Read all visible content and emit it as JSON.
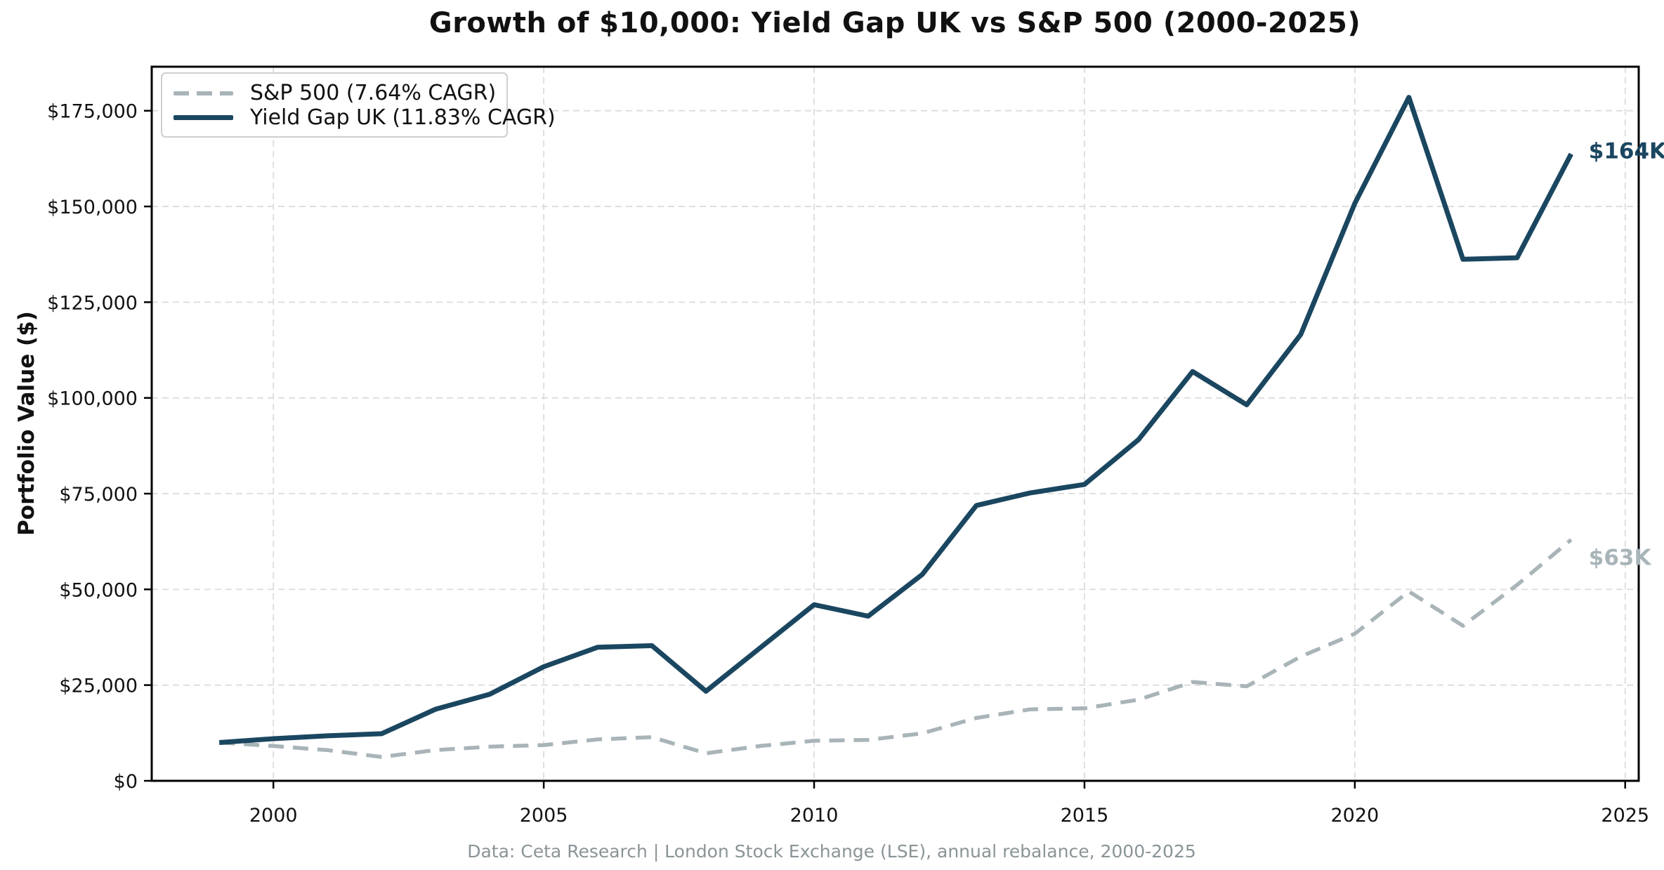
{
  "title": "Growth of $10,000: Yield Gap UK vs S&P 500 (2000-2025)",
  "y_axis_label": "Portfolio Value ($)",
  "footer": "Data: Ceta Research | London Stock Exchange (LSE), annual rebalance, 2000-2025",
  "legend": {
    "position": "upper left",
    "items": [
      {
        "label": "S&P 500 (7.64% CAGR)",
        "color": "#a8b4b8",
        "style": "dashed"
      },
      {
        "label": "Yield Gap UK (11.83% CAGR)",
        "color": "#1a4660",
        "style": "solid"
      }
    ]
  },
  "colors": {
    "sp500_line": "#a8b4b8",
    "yield_gap_line": "#1a4660",
    "gridline": "#dcdcdc",
    "axis": "#000000",
    "tick_text": "#111111",
    "footer_text": "#8a9497"
  },
  "chart_data": {
    "type": "line",
    "title": "Growth of $10,000: Yield Gap UK vs S&P 500 (2000-2025)",
    "xlabel": "",
    "ylabel": "Portfolio Value ($)",
    "grid": true,
    "legend_position": "upper left",
    "xlim": [
      1997.75,
      2025.25
    ],
    "ylim": [
      0,
      186500
    ],
    "xticks": [
      2000,
      2005,
      2010,
      2015,
      2020,
      2025
    ],
    "yticks": [
      0,
      25000,
      50000,
      75000,
      100000,
      125000,
      150000,
      175000
    ],
    "ytick_labels": [
      "$0",
      "$25,000",
      "$50,000",
      "$75,000",
      "$100,000",
      "$125,000",
      "$150,000",
      "$175,000"
    ],
    "x": [
      1999,
      2000,
      2001,
      2002,
      2003,
      2004,
      2005,
      2006,
      2007,
      2008,
      2009,
      2010,
      2011,
      2012,
      2013,
      2014,
      2015,
      2016,
      2017,
      2018,
      2019,
      2020,
      2021,
      2022,
      2023,
      2024
    ],
    "series": [
      {
        "name": "S&P 500 (7.64% CAGR)",
        "color": "#a8b4b8",
        "dash": true,
        "line_width": 5.5,
        "end_label": "$63K",
        "end_label_offset": [
          25,
          36
        ],
        "values": [
          10000,
          9090,
          8010,
          6240,
          8030,
          8910,
          9340,
          10820,
          11410,
          7190,
          9090,
          10470,
          10690,
          12400,
          16410,
          18660,
          18920,
          21190,
          25810,
          24680,
          32450,
          38420,
          49450,
          40500,
          51150,
          62970
        ]
      },
      {
        "name": "Yield Gap UK (11.83% CAGR)",
        "color": "#1a4660",
        "dash": false,
        "line_width": 7,
        "end_label": "$164K",
        "end_label_offset": [
          25,
          6
        ],
        "values": [
          10000,
          11000,
          11750,
          12300,
          18700,
          22600,
          29800,
          34900,
          35300,
          23400,
          34700,
          46000,
          43000,
          53900,
          71900,
          75200,
          77400,
          89100,
          106900,
          98200,
          116600,
          150800,
          178500,
          136200,
          136600,
          163700
        ]
      }
    ]
  }
}
